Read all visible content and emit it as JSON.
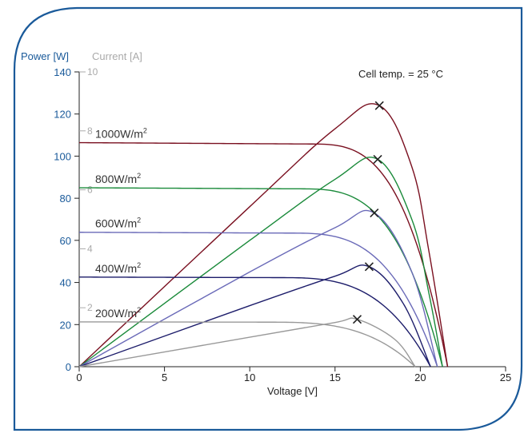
{
  "chart_data": {
    "type": "line",
    "title": "",
    "annotation": "Cell temp. = 25 °C",
    "xlabel": "Voltage [V]",
    "ylabel_left": "Power [W]",
    "ylabel_right_series": "Current [A]",
    "xlim": [
      0,
      25
    ],
    "ylim_power": [
      0,
      140
    ],
    "ylim_current": [
      0,
      10
    ],
    "x_ticks": [
      "0",
      "5",
      "10",
      "15",
      "20",
      "25"
    ],
    "power_ticks": [
      "0",
      "20",
      "40",
      "60",
      "80",
      "100",
      "120",
      "140"
    ],
    "current_ticks": [
      "2",
      "4",
      "6",
      "8",
      "10"
    ],
    "grid": false,
    "colors": {
      "power_axis": "#1a5a9a",
      "current_axis": "#aaaaaa",
      "s1000": "#7a1020",
      "s800": "#1a8a3a",
      "s600": "#6a6ab8",
      "s400": "#1c1c6a",
      "s200": "#999999"
    },
    "series": [
      {
        "name": "1000W/m²",
        "irradiance_label": "1000W/m",
        "sup": "2",
        "color_key": "s1000",
        "isc": 7.6,
        "voc": 21.6,
        "mpp_v": 17.6,
        "mpp_power": 124,
        "knee_frac": 0.62,
        "power_curve": {
          "x": [
            0,
            10,
            15,
            17.6,
            19.5,
            20.5,
            21.6
          ],
          "y": [
            0,
            76,
            113,
            124,
            95,
            55,
            0
          ]
        }
      },
      {
        "name": "800W/m²",
        "irradiance_label": "800W/m",
        "sup": "2",
        "color_key": "s800",
        "isc": 6.07,
        "voc": 21.3,
        "mpp_v": 17.5,
        "mpp_power": 98.5,
        "knee_frac": 0.6,
        "power_curve": {
          "x": [
            0,
            10,
            15,
            17.5,
            19.5,
            20.5,
            21.3
          ],
          "y": [
            0,
            60,
            89,
            98.5,
            70,
            35,
            0
          ]
        }
      },
      {
        "name": "600W/m²",
        "irradiance_label": "600W/m",
        "sup": "2",
        "color_key": "s600",
        "isc": 4.56,
        "voc": 21.0,
        "mpp_v": 17.3,
        "mpp_power": 73,
        "knee_frac": 0.58,
        "power_curve": {
          "x": [
            0,
            10,
            15,
            17.3,
            19.5,
            21.0
          ],
          "y": [
            0,
            45,
            66,
            73,
            45,
            0
          ]
        }
      },
      {
        "name": "400W/m²",
        "irradiance_label": "400W/m",
        "sup": "2",
        "color_key": "s400",
        "isc": 3.04,
        "voc": 20.6,
        "mpp_v": 17.0,
        "mpp_power": 47.5,
        "knee_frac": 0.56,
        "power_curve": {
          "x": [
            0,
            10,
            15,
            17.0,
            19.0,
            20.6
          ],
          "y": [
            0,
            29,
            43,
            47.5,
            30,
            0
          ]
        }
      },
      {
        "name": "200W/m²",
        "irradiance_label": "200W/m",
        "sup": "2",
        "color_key": "s200",
        "isc": 1.52,
        "voc": 19.7,
        "mpp_v": 16.3,
        "mpp_power": 22.5,
        "knee_frac": 0.55,
        "power_curve": {
          "x": [
            0,
            10,
            15,
            16.3,
            18.5,
            19.7
          ],
          "y": [
            0,
            14,
            21,
            22.5,
            13,
            0
          ]
        }
      }
    ]
  }
}
